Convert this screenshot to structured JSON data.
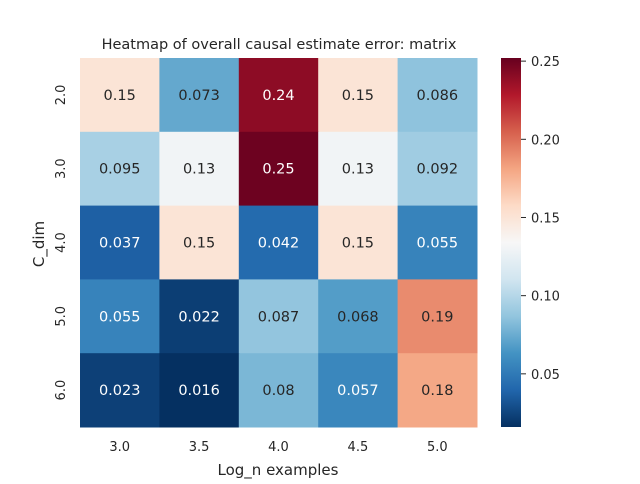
{
  "chart_data": {
    "type": "heatmap",
    "title": "Heatmap of overall causal estimate error: matrix",
    "xlabel": "Log_n examples",
    "ylabel": "C_dim",
    "x_categories": [
      "3.0",
      "3.5",
      "4.0",
      "4.5",
      "5.0"
    ],
    "y_categories": [
      "2.0",
      "3.0",
      "4.0",
      "5.0",
      "6.0"
    ],
    "values": [
      [
        0.15,
        0.073,
        0.24,
        0.15,
        0.086
      ],
      [
        0.095,
        0.13,
        0.25,
        0.13,
        0.092
      ],
      [
        0.037,
        0.15,
        0.042,
        0.15,
        0.055
      ],
      [
        0.055,
        0.022,
        0.087,
        0.068,
        0.19
      ],
      [
        0.023,
        0.016,
        0.08,
        0.057,
        0.18
      ]
    ],
    "cell_labels": [
      [
        "0.15",
        "0.073",
        "0.24",
        "0.15",
        "0.086"
      ],
      [
        "0.095",
        "0.13",
        "0.25",
        "0.13",
        "0.092"
      ],
      [
        "0.037",
        "0.15",
        "0.042",
        "0.15",
        "0.055"
      ],
      [
        "0.055",
        "0.022",
        "0.087",
        "0.068",
        "0.19"
      ],
      [
        "0.023",
        "0.016",
        "0.08",
        "0.057",
        "0.18"
      ]
    ],
    "colormap": "RdBu_r",
    "colorbar": {
      "range": [
        0.016,
        0.252
      ],
      "ticks": [
        0.05,
        0.1,
        0.15,
        0.2,
        0.25
      ],
      "tick_labels": [
        "0.05",
        "0.10",
        "0.15",
        "0.20",
        "0.25"
      ]
    },
    "grid": false
  }
}
